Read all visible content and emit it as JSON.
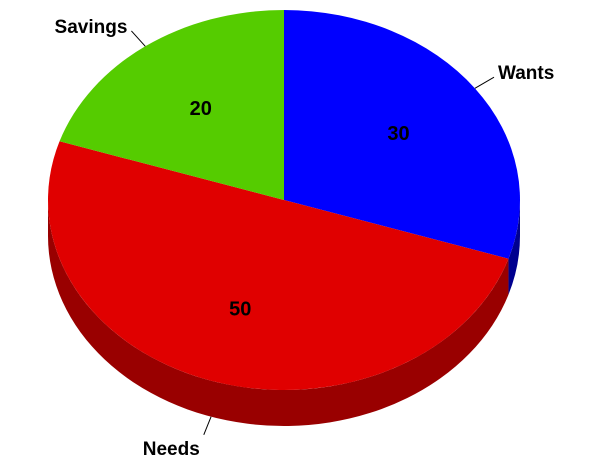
{
  "chart_data": {
    "type": "pie",
    "title": "",
    "three_d": true,
    "slices": [
      {
        "label": "Wants",
        "value": 30,
        "color": "#0000ff",
        "side_color": "#00008f"
      },
      {
        "label": "Needs",
        "value": 50,
        "color": "#e00000",
        "side_color": "#990000"
      },
      {
        "label": "Savings",
        "value": 20,
        "color": "#55cc00",
        "side_color": "#2f7a00"
      }
    ],
    "start_angle_deg": 0,
    "direction": "clockwise",
    "value_labels": "inside",
    "category_labels": "outside-with-leader-lines"
  }
}
